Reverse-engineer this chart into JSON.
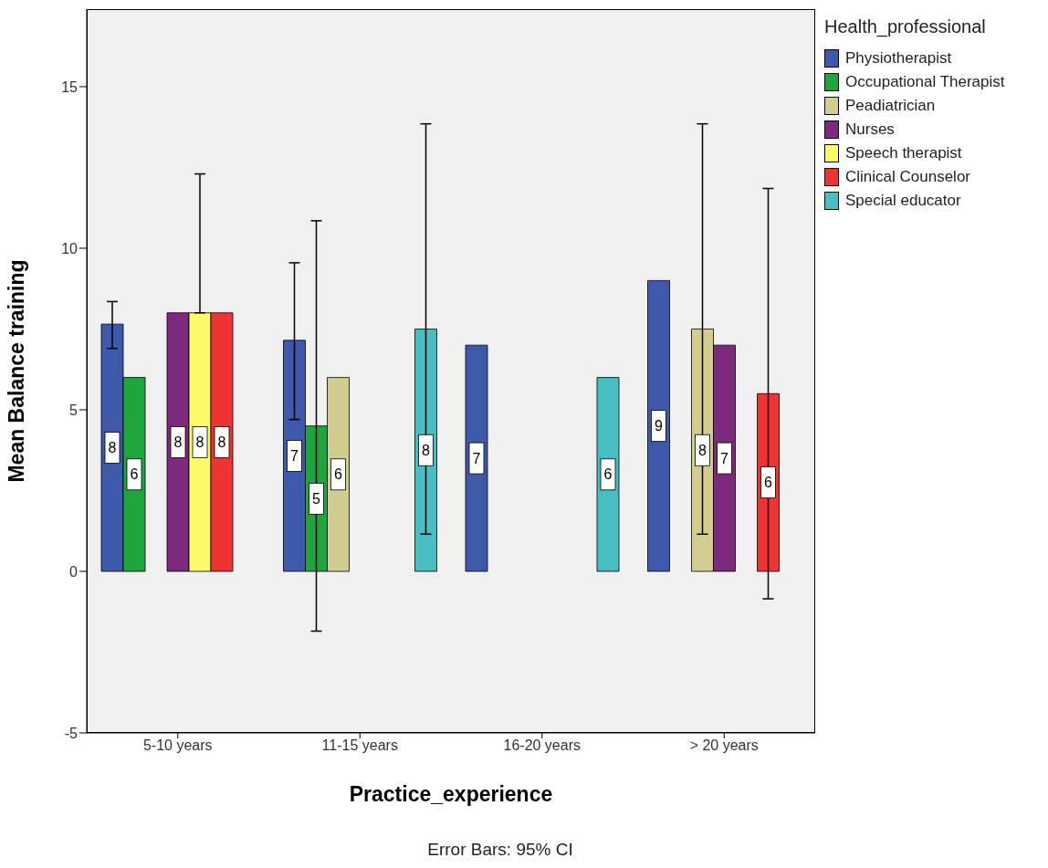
{
  "chart_data": {
    "type": "bar",
    "xlabel": "Practice_experience",
    "ylabel": "Mean Balance training",
    "legend_title": "Health_professional",
    "categories": [
      "5-10 years",
      "11-15 years",
      "16-20 years",
      "> 20 years"
    ],
    "ylim": [
      -5,
      17.4
    ],
    "yticks": [
      -5,
      0,
      5,
      10,
      15
    ],
    "grid": false,
    "legend": "top right",
    "annotations": [
      "Error Bars: 95% CI"
    ],
    "series": [
      {
        "name": "Physiotherapist",
        "color": "#3e58ac",
        "values": [
          7.65,
          7.15,
          7.0,
          9.0
        ],
        "errors": [
          [
            6.9,
            8.35
          ],
          [
            4.7,
            9.55
          ],
          null,
          null
        ],
        "value_labels": [
          "8",
          "7",
          "7",
          "9"
        ]
      },
      {
        "name": "Occupational Therapist",
        "color": "#1ea63c",
        "values": [
          6.0,
          4.5,
          null,
          null
        ],
        "errors": [
          null,
          [
            -1.85,
            10.85
          ],
          null,
          null
        ],
        "value_labels": [
          "6",
          "5",
          null,
          null
        ]
      },
      {
        "name": "Peadiatrician",
        "color": "#d2cc8e",
        "values": [
          null,
          6.0,
          null,
          7.5
        ],
        "errors": [
          null,
          null,
          null,
          [
            1.15,
            13.85
          ]
        ],
        "value_labels": [
          null,
          "6",
          null,
          "8"
        ]
      },
      {
        "name": "Nurses",
        "color": "#7d2a7d",
        "values": [
          8.0,
          null,
          null,
          7.0
        ],
        "errors": [
          null,
          null,
          null,
          null
        ],
        "value_labels": [
          "8",
          null,
          null,
          "7"
        ]
      },
      {
        "name": "Speech therapist",
        "color": "#fbfb6a",
        "values": [
          8.0,
          null,
          null,
          null
        ],
        "errors": [
          [
            8.0,
            12.3
          ],
          null,
          null,
          null
        ],
        "value_labels": [
          "8",
          null,
          null,
          null
        ]
      },
      {
        "name": "Clinical Counselor",
        "color": "#ee3333",
        "values": [
          8.0,
          null,
          null,
          5.5
        ],
        "errors": [
          null,
          null,
          null,
          [
            -0.85,
            11.85
          ]
        ],
        "value_labels": [
          "8",
          null,
          null,
          "6"
        ]
      },
      {
        "name": "Special educator",
        "color": "#47bec2",
        "values": [
          null,
          7.5,
          6.0,
          null
        ],
        "errors": [
          null,
          [
            1.15,
            13.85
          ],
          null,
          null
        ],
        "value_labels": [
          null,
          "8",
          "6",
          null
        ]
      }
    ]
  }
}
